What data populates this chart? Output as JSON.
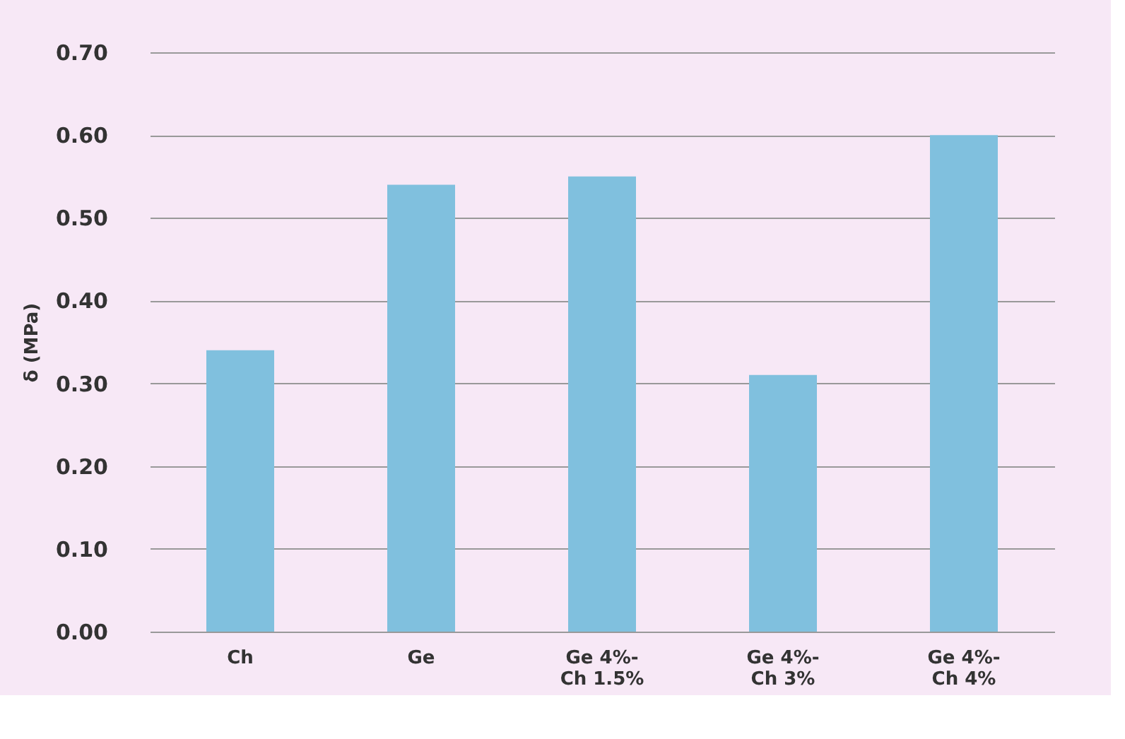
{
  "chart_data": {
    "type": "bar",
    "ylabel": "δ (MPa)",
    "categories": [
      "Ch",
      "Ge",
      "Ge 4%-\nCh 1.5%",
      "Ge 4%-\nCh 3%",
      "Ge 4%-\nCh 4%"
    ],
    "values": [
      0.34,
      0.54,
      0.55,
      0.31,
      0.6
    ],
    "color": "#80c0de",
    "ylim": [
      0,
      0.7
    ],
    "yticks": [
      {
        "value": 0,
        "label": "0.00"
      },
      {
        "value": 0.1,
        "label": "0.10"
      },
      {
        "value": 0.2,
        "label": "0.20"
      },
      {
        "value": 0.3,
        "label": "0.30"
      },
      {
        "value": 0.4,
        "label": "0.40"
      },
      {
        "value": 0.5,
        "label": "0.50"
      },
      {
        "value": 0.6,
        "label": "0.60"
      },
      {
        "value": 0.7,
        "label": "0.70"
      }
    ],
    "grid": "y"
  }
}
